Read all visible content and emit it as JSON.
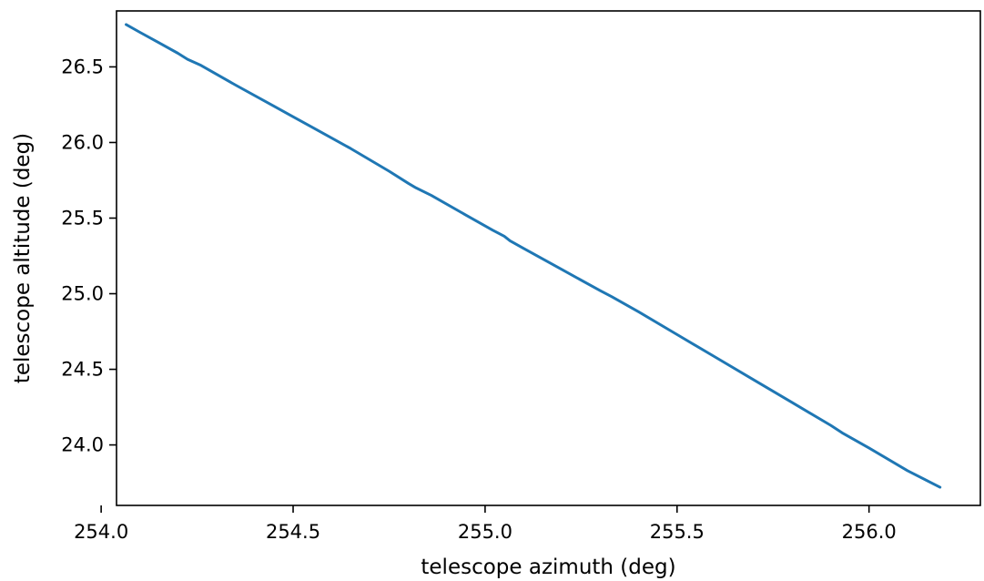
{
  "chart_data": {
    "type": "line",
    "title": "",
    "xlabel": "telescope azimuth (deg)",
    "ylabel": "telescope altitude (deg)",
    "xlim": [
      254.04,
      256.29
    ],
    "ylim": [
      23.6,
      26.87
    ],
    "x_ticks": [
      254.0,
      254.5,
      255.0,
      255.5,
      256.0
    ],
    "x_tick_labels": [
      "254.0",
      "254.5",
      "255.0",
      "255.5",
      "256.0"
    ],
    "y_ticks": [
      24.0,
      24.5,
      25.0,
      25.5,
      26.0,
      26.5
    ],
    "y_tick_labels": [
      "24.0",
      "24.5",
      "25.0",
      "25.5",
      "26.0",
      "26.5"
    ],
    "grid": false,
    "series": [
      {
        "color": "#1f77b4",
        "x": [
          254.065,
          254.1,
          254.15,
          254.2,
          254.225,
          254.26,
          254.35,
          254.45,
          254.55,
          254.65,
          254.75,
          254.8,
          254.82,
          254.86,
          254.95,
          255.02,
          255.05,
          255.065,
          255.1,
          255.2,
          255.3,
          255.33,
          255.4,
          255.5,
          255.6,
          255.7,
          255.8,
          255.9,
          255.93,
          256.0,
          256.1,
          256.185
        ],
        "y": [
          26.78,
          26.73,
          26.66,
          26.59,
          26.55,
          26.51,
          26.38,
          26.24,
          26.1,
          25.96,
          25.81,
          25.73,
          25.7,
          25.65,
          25.52,
          25.42,
          25.38,
          25.35,
          25.3,
          25.16,
          25.02,
          24.98,
          24.88,
          24.73,
          24.58,
          24.43,
          24.28,
          24.13,
          24.08,
          23.98,
          23.83,
          23.72
        ]
      }
    ]
  }
}
